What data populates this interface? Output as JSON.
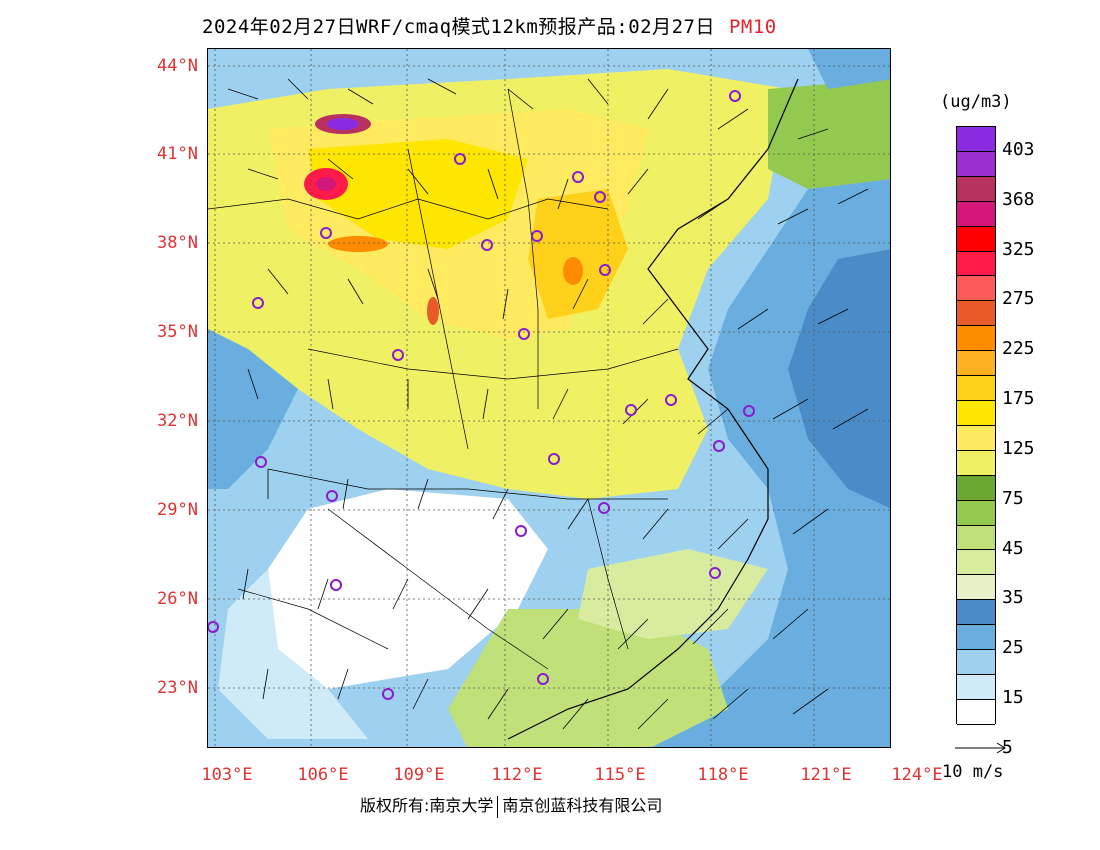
{
  "title": {
    "text": "2024年02月27日WRF/cmaq模式12km预报产品:02月27日",
    "variable": "PM10"
  },
  "map": {
    "lat_labels": [
      "44°N",
      "41°N",
      "38°N",
      "35°N",
      "32°N",
      "29°N",
      "26°N",
      "23°N"
    ],
    "lon_labels": [
      "103°E",
      "106°E",
      "109°E",
      "112°E",
      "115°E",
      "118°E",
      "121°E",
      "124°E"
    ],
    "colors": {
      "coastline": "#000000",
      "grid": "#555555",
      "city_marker": "#8a1ccf",
      "wind_arrow": "#000000"
    }
  },
  "legend": {
    "unit": "(ug/m3)",
    "labels": [
      "403",
      "368",
      "325",
      "275",
      "225",
      "175",
      "125",
      "75",
      "45",
      "35",
      "25",
      "15",
      "5"
    ],
    "colors": [
      "#8a2be2",
      "#9b30d0",
      "#b8315f",
      "#d4157a",
      "#ff0000",
      "#ff1a4a",
      "#ff5a5a",
      "#e85a2a",
      "#ff8c00",
      "#ffb020",
      "#ffd11a",
      "#ffe600",
      "#ffea60",
      "#f0f064",
      "#6aa832",
      "#92c94e",
      "#c0e07a",
      "#d8eca0",
      "#e8f0c8",
      "#4a8cc8",
      "#6aaee0",
      "#9ed0f0",
      "#d0ebf8",
      "#ffffff"
    ]
  },
  "wind_reference": {
    "label": "10 m/s"
  },
  "copyright": {
    "left": "版权所有:南京大学",
    "right": "南京创蓝科技有限公司"
  }
}
